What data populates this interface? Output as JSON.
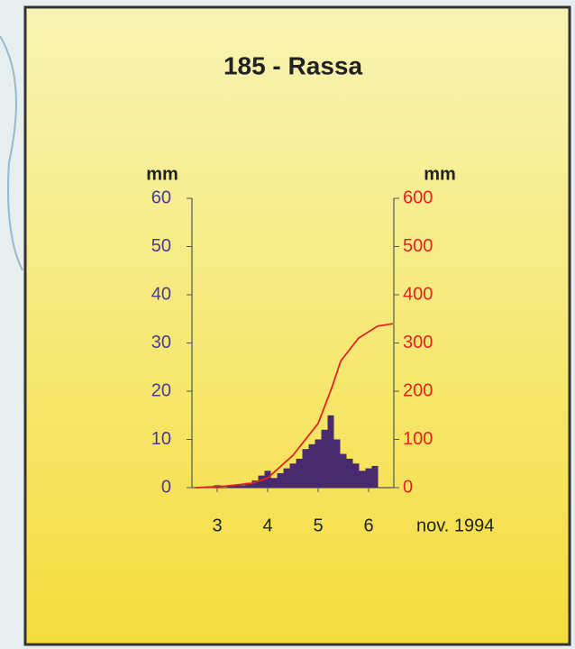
{
  "chart_data": {
    "type": "bar",
    "title": "185 - Rassa",
    "y_label": "mm",
    "y2_label": "mm",
    "x_label": "nov. 1994",
    "xlim": [
      2.5,
      6.5
    ],
    "xticks": [
      3,
      4,
      5,
      6
    ],
    "ylim": [
      0,
      60
    ],
    "yticks": [
      0,
      10,
      20,
      30,
      40,
      50,
      60
    ],
    "y2lim": [
      0,
      600
    ],
    "y2ticks": [
      0,
      100,
      200,
      300,
      400,
      500,
      600
    ],
    "y_color": "#4a3a90",
    "y2_color": "#e52222",
    "series": [
      {
        "type": "bar",
        "color": "#4a2a6e",
        "x": [
          2.75,
          2.875,
          3.0,
          3.125,
          3.25,
          3.375,
          3.5,
          3.625,
          3.75,
          3.875,
          4.0,
          4.125,
          4.25,
          4.375,
          4.5,
          4.625,
          4.75,
          4.875,
          5.0,
          5.125,
          5.25,
          5.375,
          5.5,
          5.625,
          5.75,
          5.875,
          6.0,
          6.125
        ],
        "values": [
          0,
          0,
          0.5,
          0,
          0.3,
          0.5,
          0.5,
          1,
          1.5,
          2.5,
          3.5,
          2,
          3,
          4,
          5,
          6,
          8,
          9,
          10,
          12,
          15,
          10,
          7,
          6,
          5,
          3.5,
          4,
          4.5
        ]
      },
      {
        "type": "line",
        "axis": "y2",
        "color": "#e52222",
        "x": [
          2.57,
          3.14,
          3.68,
          4.0,
          4.5,
          5.0,
          5.27,
          5.45,
          5.8,
          6.18,
          6.48
        ],
        "values": [
          0,
          3,
          9,
          20,
          67,
          133,
          207,
          263,
          310,
          335,
          340
        ]
      }
    ]
  }
}
